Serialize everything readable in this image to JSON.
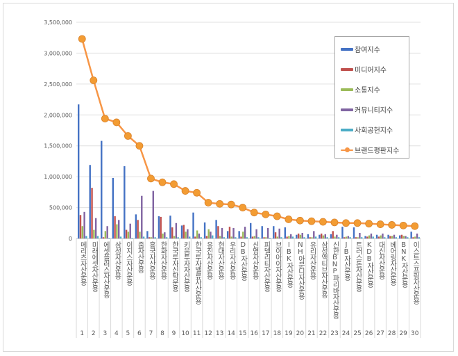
{
  "chart_data": {
    "type": "bar",
    "title": "",
    "xlabel": "",
    "ylabel": "",
    "ylim": [
      0,
      3500000
    ],
    "yticks": [
      "0",
      "500,000",
      "1,000,000",
      "1,500,000",
      "2,000,000",
      "2,500,000",
      "3,000,000",
      "3,500,000"
    ],
    "grid": true,
    "legend_position": "top-right",
    "ranks": [
      "1",
      "2",
      "3",
      "4",
      "5",
      "6",
      "7",
      "8",
      "9",
      "10",
      "11",
      "12",
      "13",
      "14",
      "15",
      "16",
      "17",
      "18",
      "19",
      "20",
      "21",
      "22",
      "23",
      "24",
      "25",
      "26",
      "27",
      "28",
      "29",
      "30"
    ],
    "categories": [
      "메리츠자산운용",
      "미래에셋자산운용",
      "에셋플러스자산운용",
      "삼성자산운용",
      "이지스자산운용",
      "줌자산운용",
      "흥국자산운용",
      "한화자산운용",
      "한국투자신탁운용",
      "키움투자자산운용",
      "한국투자밸류자산운용",
      "유진자산운용",
      "현대자산운용",
      "우리자산운용",
      "DB자산운용",
      "신영자산운용",
      "피델리티자산운용",
      "브이아이자산운용",
      "IBK자산운용",
      "NH아문디자산운용",
      "유리자산운용",
      "삼성액티브자산운용",
      "신한BNP파리바자산운용",
      "JB자산운용",
      "트러스톤자산운용",
      "KDB자산운용",
      "대신자산운용",
      "베어링자산운용",
      "BNK자산운용",
      "이스트스프링자산운용"
    ],
    "series": [
      {
        "name": "참여지수",
        "type": "bar",
        "color": "#4472c4",
        "values": [
          2170000,
          1190000,
          1580000,
          980000,
          1170000,
          390000,
          120000,
          360000,
          370000,
          210000,
          420000,
          260000,
          300000,
          120000,
          120000,
          250000,
          200000,
          200000,
          180000,
          60000,
          70000,
          60000,
          70000,
          190000,
          180000,
          40000,
          60000,
          60000,
          50000,
          110000
        ]
      },
      {
        "name": "미디어지수",
        "type": "bar",
        "color": "#c0504d",
        "values": [
          380000,
          820000,
          20000,
          360000,
          140000,
          300000,
          20000,
          350000,
          180000,
          220000,
          30000,
          40000,
          200000,
          190000,
          30000,
          30000,
          20000,
          100000,
          30000,
          80000,
          20000,
          80000,
          120000,
          20000,
          20000,
          30000,
          30000,
          40000,
          60000,
          20000
        ]
      },
      {
        "name": "소통지수",
        "type": "bar",
        "color": "#9bbb59",
        "values": [
          200000,
          140000,
          120000,
          230000,
          110000,
          110000,
          20000,
          80000,
          40000,
          110000,
          130000,
          150000,
          40000,
          30000,
          110000,
          40000,
          20000,
          30000,
          40000,
          60000,
          20000,
          50000,
          30000,
          30000,
          20000,
          50000,
          50000,
          40000,
          40000,
          30000
        ]
      },
      {
        "name": "커뮤니티지수",
        "type": "bar",
        "color": "#8064a2",
        "values": [
          430000,
          330000,
          200000,
          300000,
          240000,
          690000,
          770000,
          100000,
          250000,
          150000,
          80000,
          110000,
          170000,
          170000,
          190000,
          150000,
          170000,
          160000,
          70000,
          90000,
          120000,
          70000,
          60000,
          40000,
          90000,
          80000,
          80000,
          60000,
          40000,
          80000
        ]
      },
      {
        "name": "사회공헌지수",
        "type": "bar",
        "color": "#4bacc6",
        "values": [
          40000,
          40000,
          10000,
          30000,
          10000,
          30000,
          20000,
          20000,
          20000,
          30000,
          20000,
          50000,
          20000,
          20000,
          20000,
          20000,
          10000,
          20000,
          30000,
          20000,
          30000,
          20000,
          20000,
          20000,
          20000,
          30000,
          20000,
          20000,
          20000,
          20000
        ]
      },
      {
        "name": "브랜드평판지수",
        "type": "line",
        "color": "#f79646",
        "values": [
          3230000,
          2560000,
          1940000,
          1880000,
          1660000,
          1500000,
          970000,
          910000,
          880000,
          770000,
          740000,
          580000,
          560000,
          550000,
          500000,
          420000,
          390000,
          360000,
          310000,
          290000,
          280000,
          270000,
          260000,
          250000,
          250000,
          240000,
          230000,
          220000,
          210000,
          200000
        ]
      }
    ]
  }
}
